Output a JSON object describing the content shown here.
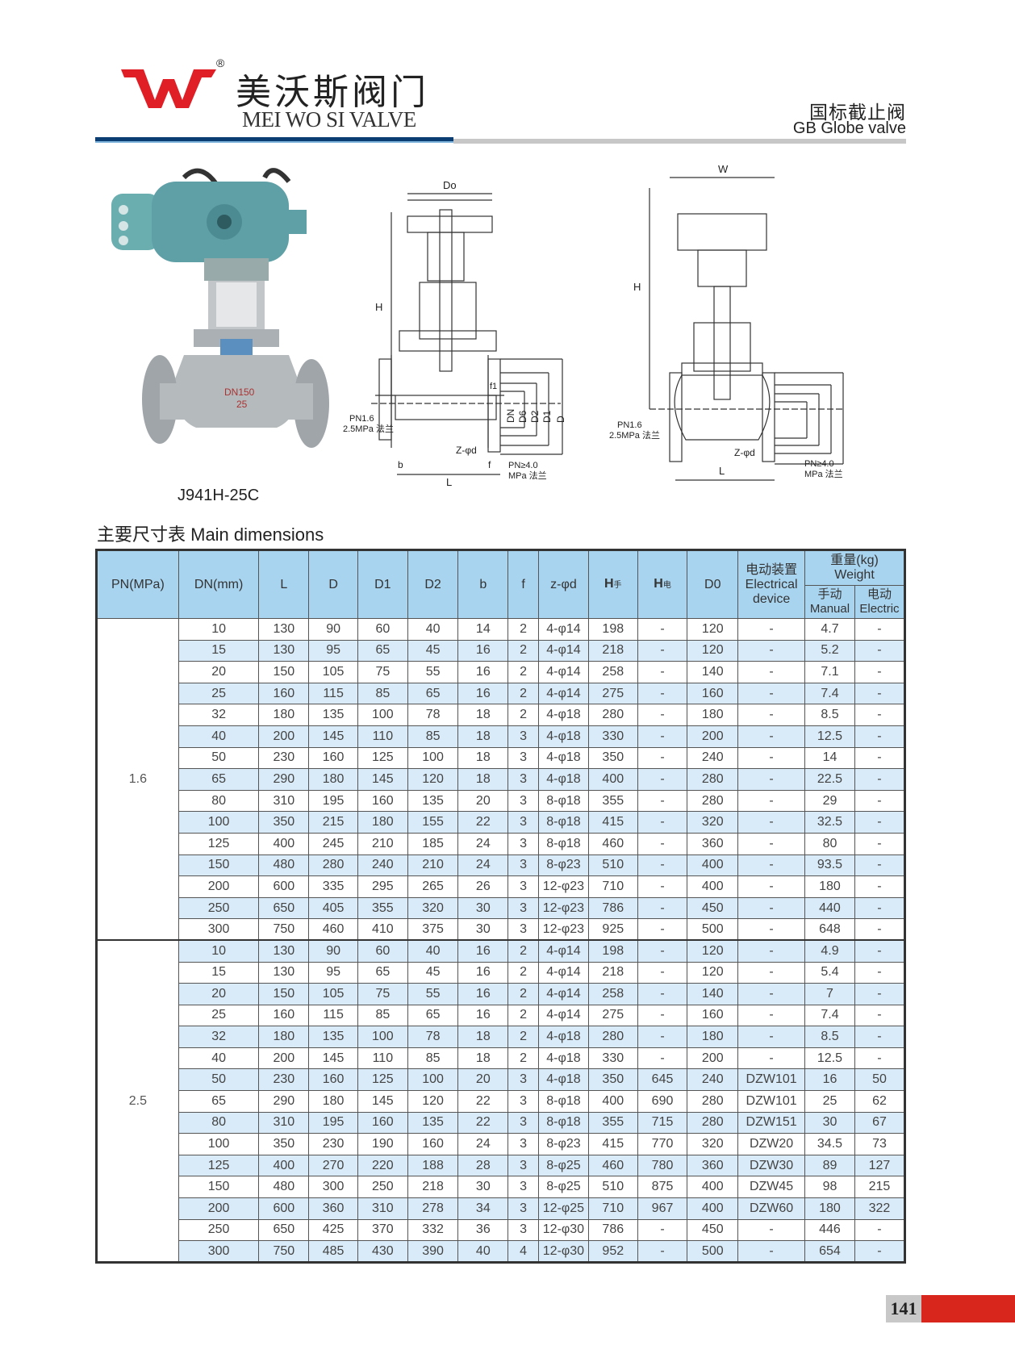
{
  "brand": {
    "name_cn": "美沃斯阀门",
    "name_en": "MEI WO SI VALVE",
    "registered": "®",
    "logo_color": "#e01e25"
  },
  "header": {
    "title_cn": "国标截止阀",
    "title_en": "GB Globe valve",
    "accent_blue": "#0c3d72",
    "accent_grey": "#c7c7c7"
  },
  "product": {
    "model": "J941H-25C",
    "body_marking": [
      "DN150",
      "25"
    ]
  },
  "drawing_labels": {
    "Do": "Do",
    "W": "W",
    "H": "H",
    "DN": "DN",
    "D6": "D6",
    "D2": "D2",
    "D1": "D1",
    "D": "D",
    "f1": "f1",
    "f": "f",
    "b": "b",
    "L": "L",
    "zd": "Z-φd",
    "pn_low_1": "PN1.6",
    "pn_low_2": "2.5MPa 法兰",
    "pn_high_1": "PN≥4.0",
    "pn_high_2": "MPa 法兰"
  },
  "section_title": "主要尺寸表 Main dimensions",
  "table": {
    "headers": {
      "pn": "PN(MPa)",
      "dn": "DN(mm)",
      "L": "L",
      "D": "D",
      "D1": "D1",
      "D2": "D2",
      "b": "b",
      "f": "f",
      "zd": "z-φd",
      "h_manual": "H",
      "h_manual_sub": "手",
      "h_electric": "H",
      "h_electric_sub": "电",
      "d0": "D0",
      "device_cn": "电动装置",
      "device_en": "Electrical device",
      "weight_cn": "重量(kg)",
      "weight_en": "Weight",
      "manual_cn": "手动",
      "manual_en": "Manual",
      "electric_cn": "电动",
      "electric_en": "Electric"
    },
    "groups": [
      {
        "pn": "1.6",
        "rows": [
          [
            "10",
            "130",
            "90",
            "60",
            "40",
            "14",
            "2",
            "4-φ14",
            "198",
            "-",
            "120",
            "-",
            "4.7",
            "-"
          ],
          [
            "15",
            "130",
            "95",
            "65",
            "45",
            "16",
            "2",
            "4-φ14",
            "218",
            "-",
            "120",
            "-",
            "5.2",
            "-"
          ],
          [
            "20",
            "150",
            "105",
            "75",
            "55",
            "16",
            "2",
            "4-φ14",
            "258",
            "-",
            "140",
            "-",
            "7.1",
            "-"
          ],
          [
            "25",
            "160",
            "115",
            "85",
            "65",
            "16",
            "2",
            "4-φ14",
            "275",
            "-",
            "160",
            "-",
            "7.4",
            "-"
          ],
          [
            "32",
            "180",
            "135",
            "100",
            "78",
            "18",
            "2",
            "4-φ18",
            "280",
            "-",
            "180",
            "-",
            "8.5",
            "-"
          ],
          [
            "40",
            "200",
            "145",
            "110",
            "85",
            "18",
            "3",
            "4-φ18",
            "330",
            "-",
            "200",
            "-",
            "12.5",
            "-"
          ],
          [
            "50",
            "230",
            "160",
            "125",
            "100",
            "18",
            "3",
            "4-φ18",
            "350",
            "-",
            "240",
            "-",
            "14",
            "-"
          ],
          [
            "65",
            "290",
            "180",
            "145",
            "120",
            "18",
            "3",
            "4-φ18",
            "400",
            "-",
            "280",
            "-",
            "22.5",
            "-"
          ],
          [
            "80",
            "310",
            "195",
            "160",
            "135",
            "20",
            "3",
            "8-φ18",
            "355",
            "-",
            "280",
            "-",
            "29",
            "-"
          ],
          [
            "100",
            "350",
            "215",
            "180",
            "155",
            "22",
            "3",
            "8-φ18",
            "415",
            "-",
            "320",
            "-",
            "32.5",
            "-"
          ],
          [
            "125",
            "400",
            "245",
            "210",
            "185",
            "24",
            "3",
            "8-φ18",
            "460",
            "-",
            "360",
            "-",
            "80",
            "-"
          ],
          [
            "150",
            "480",
            "280",
            "240",
            "210",
            "24",
            "3",
            "8-φ23",
            "510",
            "-",
            "400",
            "-",
            "93.5",
            "-"
          ],
          [
            "200",
            "600",
            "335",
            "295",
            "265",
            "26",
            "3",
            "12-φ23",
            "710",
            "-",
            "400",
            "-",
            "180",
            "-"
          ],
          [
            "250",
            "650",
            "405",
            "355",
            "320",
            "30",
            "3",
            "12-φ23",
            "786",
            "-",
            "450",
            "-",
            "440",
            "-"
          ],
          [
            "300",
            "750",
            "460",
            "410",
            "375",
            "30",
            "3",
            "12-φ23",
            "925",
            "-",
            "500",
            "-",
            "648",
            "-"
          ]
        ]
      },
      {
        "pn": "2.5",
        "rows": [
          [
            "10",
            "130",
            "90",
            "60",
            "40",
            "16",
            "2",
            "4-φ14",
            "198",
            "-",
            "120",
            "-",
            "4.9",
            "-"
          ],
          [
            "15",
            "130",
            "95",
            "65",
            "45",
            "16",
            "2",
            "4-φ14",
            "218",
            "-",
            "120",
            "-",
            "5.4",
            "-"
          ],
          [
            "20",
            "150",
            "105",
            "75",
            "55",
            "16",
            "2",
            "4-φ14",
            "258",
            "-",
            "140",
            "-",
            "7",
            "-"
          ],
          [
            "25",
            "160",
            "115",
            "85",
            "65",
            "16",
            "2",
            "4-φ14",
            "275",
            "-",
            "160",
            "-",
            "7.4",
            "-"
          ],
          [
            "32",
            "180",
            "135",
            "100",
            "78",
            "18",
            "2",
            "4-φ18",
            "280",
            "-",
            "180",
            "-",
            "8.5",
            "-"
          ],
          [
            "40",
            "200",
            "145",
            "110",
            "85",
            "18",
            "2",
            "4-φ18",
            "330",
            "-",
            "200",
            "-",
            "12.5",
            "-"
          ],
          [
            "50",
            "230",
            "160",
            "125",
            "100",
            "20",
            "3",
            "4-φ18",
            "350",
            "645",
            "240",
            "DZW101",
            "16",
            "50"
          ],
          [
            "65",
            "290",
            "180",
            "145",
            "120",
            "22",
            "3",
            "8-φ18",
            "400",
            "690",
            "280",
            "DZW101",
            "25",
            "62"
          ],
          [
            "80",
            "310",
            "195",
            "160",
            "135",
            "22",
            "3",
            "8-φ18",
            "355",
            "715",
            "280",
            "DZW151",
            "30",
            "67"
          ],
          [
            "100",
            "350",
            "230",
            "190",
            "160",
            "24",
            "3",
            "8-φ23",
            "415",
            "770",
            "320",
            "DZW20",
            "34.5",
            "73"
          ],
          [
            "125",
            "400",
            "270",
            "220",
            "188",
            "28",
            "3",
            "8-φ25",
            "460",
            "780",
            "360",
            "DZW30",
            "89",
            "127"
          ],
          [
            "150",
            "480",
            "300",
            "250",
            "218",
            "30",
            "3",
            "8-φ25",
            "510",
            "875",
            "400",
            "DZW45",
            "98",
            "215"
          ],
          [
            "200",
            "600",
            "360",
            "310",
            "278",
            "34",
            "3",
            "12-φ25",
            "710",
            "967",
            "400",
            "DZW60",
            "180",
            "322"
          ],
          [
            "250",
            "650",
            "425",
            "370",
            "332",
            "36",
            "3",
            "12-φ30",
            "786",
            "-",
            "450",
            "-",
            "446",
            "-"
          ],
          [
            "300",
            "750",
            "485",
            "430",
            "390",
            "40",
            "4",
            "12-φ30",
            "952",
            "-",
            "500",
            "-",
            "654",
            "-"
          ]
        ]
      }
    ],
    "header_bg": "#a9d4ef",
    "alt_row_bg": "#d9ebf8"
  },
  "footer": {
    "page_number": "141",
    "accent_red": "#d9261c"
  }
}
